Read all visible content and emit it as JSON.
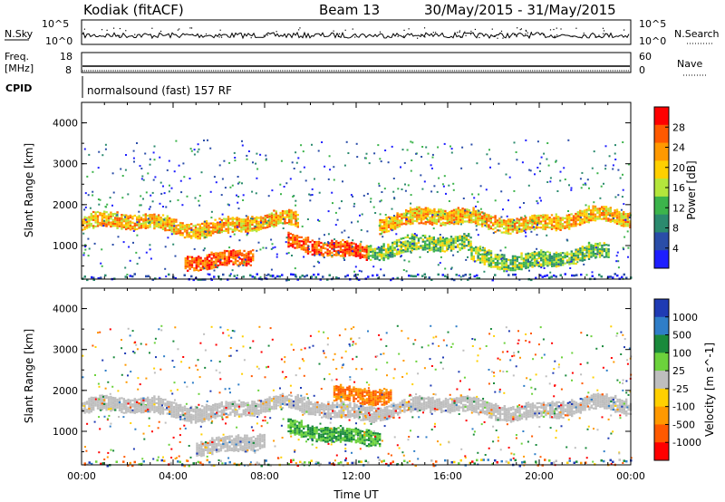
{
  "header": {
    "station": "Kodiak (fitACF)",
    "beam": "Beam 13",
    "date_range": "30/May/2015 - 31/May/2015"
  },
  "panels": {
    "nsky": {
      "label": "N.Sky",
      "right_label": "N.Search",
      "left_ticks": [
        "10^5",
        "10^0"
      ],
      "right_ticks": [
        "10^5",
        "10^0"
      ]
    },
    "freq": {
      "label_line1": "Freq.",
      "label_line2": "[MHz]",
      "right_label": "Nave",
      "left_ticks": [
        "18",
        "8"
      ],
      "right_ticks": [
        "60",
        "0"
      ]
    },
    "cpid": {
      "label": "CPID",
      "value": "normalsound (fast) 157 RF"
    }
  },
  "chart_data": [
    {
      "type": "heatmap",
      "name": "power",
      "xlabel": "",
      "ylabel": "Slant Range [km]",
      "y_ticks": [
        "4000",
        "3000",
        "2000",
        "1000"
      ],
      "ylim": [
        180,
        4500
      ],
      "xlim_hours": [
        0,
        24
      ],
      "colorbar": {
        "label": "Power [dB]",
        "ticks": [
          "28",
          "24",
          "20",
          "16",
          "12",
          "8",
          "4"
        ],
        "colors": [
          "#ff0000",
          "#ff5a00",
          "#ff9900",
          "#ffd000",
          "#b4e63c",
          "#3cb44b",
          "#2b8a6e",
          "#2a4da8",
          "#1e1eff"
        ]
      },
      "bands": [
        {
          "from_h": 0.0,
          "to_h": 9.5,
          "range_km": 1550,
          "level": "high"
        },
        {
          "from_h": 4.5,
          "to_h": 7.5,
          "range_km": 750,
          "level": "very-high"
        },
        {
          "from_h": 9.0,
          "to_h": 12.5,
          "range_km": 1000,
          "level": "very-high"
        },
        {
          "from_h": 12.5,
          "to_h": 17.0,
          "range_km": 1000,
          "level": "mid"
        },
        {
          "from_h": 13.0,
          "to_h": 24.0,
          "range_km": 1650,
          "level": "high"
        },
        {
          "from_h": 17.0,
          "to_h": 23.0,
          "range_km": 750,
          "level": "mid"
        }
      ]
    },
    {
      "type": "heatmap",
      "name": "velocity",
      "xlabel": "Time UT",
      "ylabel": "Slant Range [km]",
      "y_ticks": [
        "4000",
        "3000",
        "2000",
        "1000"
      ],
      "x_ticks": [
        "00:00",
        "04:00",
        "08:00",
        "12:00",
        "16:00",
        "20:00",
        "00:00"
      ],
      "ylim": [
        180,
        4500
      ],
      "xlim_hours": [
        0,
        24
      ],
      "colorbar": {
        "label": "Velocity [m s^-1]",
        "ticks": [
          "1000",
          "500",
          "100",
          "25",
          "-25",
          "-100",
          "-500",
          "-1000"
        ],
        "colors": [
          "#1f3bb4",
          "#2f7ec8",
          "#1a8a3c",
          "#6cd23c",
          "#bebebe",
          "#ffd000",
          "#ff9900",
          "#ff5a00",
          "#ff0000"
        ]
      },
      "bands": [
        {
          "from_h": 0.0,
          "to_h": 24.0,
          "range_km": 1600,
          "level": "ground"
        },
        {
          "from_h": 5.0,
          "to_h": 8.0,
          "range_km": 750,
          "level": "ground"
        },
        {
          "from_h": 9.0,
          "to_h": 13.0,
          "range_km": 1000,
          "level": "positive"
        },
        {
          "from_h": 11.0,
          "to_h": 13.5,
          "range_km": 2000,
          "level": "negative"
        }
      ]
    }
  ]
}
